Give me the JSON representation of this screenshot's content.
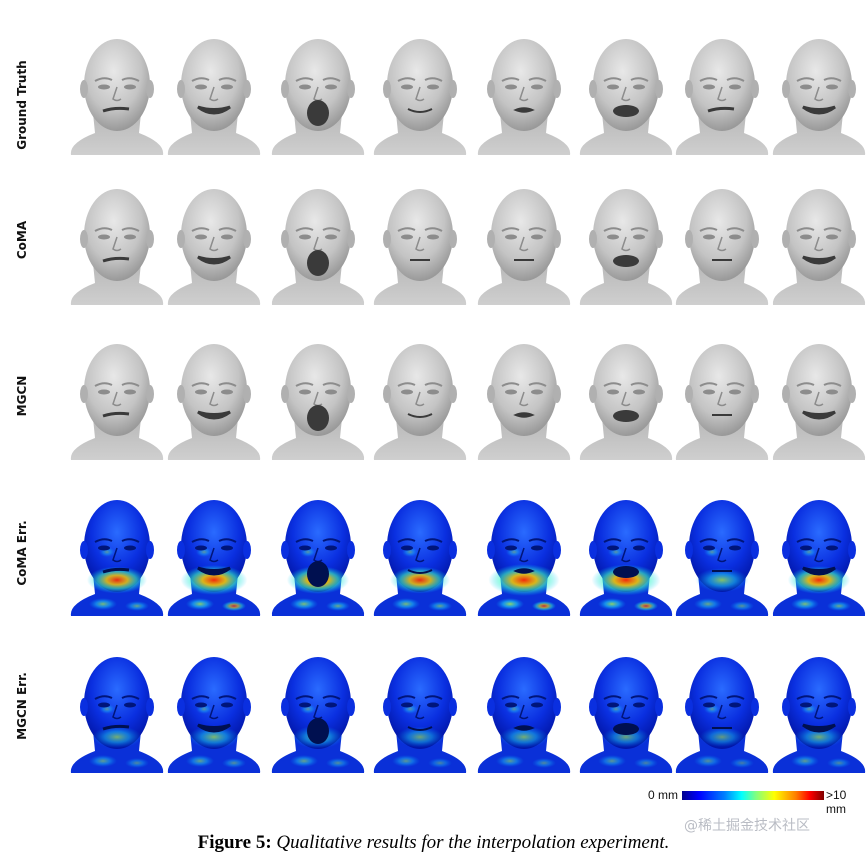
{
  "row_labels": [
    "Ground Truth",
    "CoMA",
    "MGCN",
    "CoMA Err.",
    "MGCN Err."
  ],
  "colorbar": {
    "min_label": "0 mm",
    "max_label": ">10 mm"
  },
  "caption": {
    "label": "Figure 5:",
    "text": "Qualitative results for the interpolation experiment."
  },
  "watermark": "@稀土掘金技术社区",
  "faces": [
    [
      {
        "mouth": "smirk",
        "render": "gray"
      },
      {
        "mouth": "grin",
        "render": "gray"
      },
      {
        "mouth": "yawn",
        "render": "gray"
      },
      {
        "mouth": "smile",
        "render": "gray"
      },
      {
        "mouth": "pucker",
        "render": "gray"
      },
      {
        "mouth": "open",
        "render": "gray"
      },
      {
        "mouth": "smirk",
        "render": "gray"
      },
      {
        "mouth": "grin",
        "render": "gray"
      }
    ],
    [
      {
        "mouth": "smirk",
        "render": "gray"
      },
      {
        "mouth": "grin",
        "render": "gray"
      },
      {
        "mouth": "yawn",
        "render": "gray"
      },
      {
        "mouth": "neutral",
        "render": "gray"
      },
      {
        "mouth": "neutral",
        "render": "gray"
      },
      {
        "mouth": "open",
        "render": "gray"
      },
      {
        "mouth": "neutral",
        "render": "gray"
      },
      {
        "mouth": "grin",
        "render": "gray"
      }
    ],
    [
      {
        "mouth": "smirk",
        "render": "gray"
      },
      {
        "mouth": "grin",
        "render": "gray"
      },
      {
        "mouth": "yawn",
        "render": "gray"
      },
      {
        "mouth": "smile",
        "render": "gray"
      },
      {
        "mouth": "pucker",
        "render": "gray"
      },
      {
        "mouth": "open",
        "render": "gray"
      },
      {
        "mouth": "neutral",
        "render": "gray"
      },
      {
        "mouth": "grin",
        "render": "gray"
      }
    ],
    [
      {
        "mouth": "smirk",
        "render": "heatmap",
        "error_level": 0.55
      },
      {
        "mouth": "grin",
        "render": "heatmap",
        "error_level": 0.7
      },
      {
        "mouth": "yawn",
        "render": "heatmap",
        "error_level": 0.6
      },
      {
        "mouth": "smile",
        "render": "heatmap",
        "error_level": 0.55
      },
      {
        "mouth": "pucker",
        "render": "heatmap",
        "error_level": 0.8
      },
      {
        "mouth": "open",
        "render": "heatmap",
        "error_level": 0.75
      },
      {
        "mouth": "neutral",
        "render": "heatmap",
        "error_level": 0.4
      },
      {
        "mouth": "grin",
        "render": "heatmap",
        "error_level": 0.6
      }
    ],
    [
      {
        "mouth": "smirk",
        "render": "heatmap",
        "error_level": 0.3
      },
      {
        "mouth": "grin",
        "render": "heatmap",
        "error_level": 0.35
      },
      {
        "mouth": "yawn",
        "render": "heatmap",
        "error_level": 0.35
      },
      {
        "mouth": "smile",
        "render": "heatmap",
        "error_level": 0.25
      },
      {
        "mouth": "pucker",
        "render": "heatmap",
        "error_level": 0.3
      },
      {
        "mouth": "open",
        "render": "heatmap",
        "error_level": 0.25
      },
      {
        "mouth": "neutral",
        "render": "heatmap",
        "error_level": 0.2
      },
      {
        "mouth": "grin",
        "render": "heatmap",
        "error_level": 0.3
      }
    ]
  ]
}
